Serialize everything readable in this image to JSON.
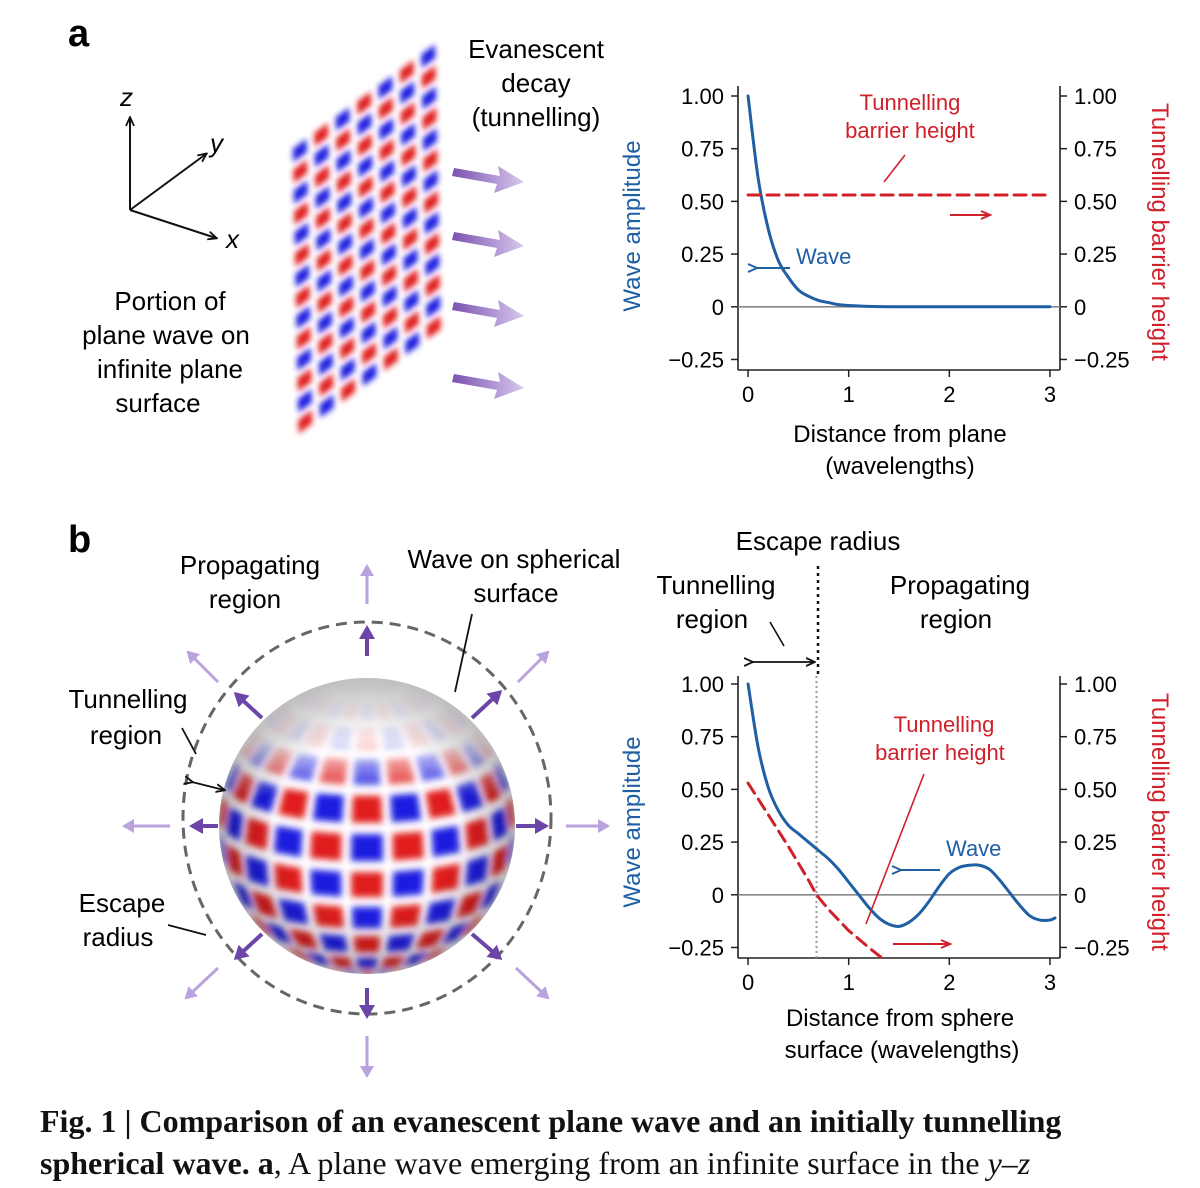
{
  "panel_a": {
    "label": "a",
    "axes": {
      "z": "z",
      "y": "y",
      "x": "x"
    },
    "plane_caption": [
      "Portion of",
      "plane wave on",
      "infinite plane",
      "surface"
    ],
    "decay_caption": [
      "Evanescent",
      "decay",
      "(tunnelling)"
    ]
  },
  "panel_b": {
    "label": "b",
    "sphere_labels": {
      "propagating": [
        "Propagating",
        "region"
      ],
      "wave_surface": [
        "Wave on spherical",
        "surface"
      ],
      "tunnelling": [
        "Tunnelling",
        "region"
      ],
      "escape": [
        "Escape",
        "radius"
      ]
    },
    "plot_header": {
      "escape_radius": "Escape radius",
      "tunnelling_region": [
        "Tunnelling",
        "region"
      ],
      "propagating_region": [
        "Propagating",
        "region"
      ]
    }
  },
  "colors": {
    "wave": "#1f5fa3",
    "barrier": "#d0202a",
    "arrow": "#8060b0",
    "dash": "#555555"
  },
  "chart_data": [
    {
      "type": "line",
      "xlabel": [
        "Distance from plane",
        "(wavelengths)"
      ],
      "ylabel": "Wave amplitude",
      "ylabel_right": "Tunnelling barrier height",
      "xlim": [
        -0.1,
        3.1
      ],
      "ylim": [
        -0.3,
        1.0
      ],
      "xticks": [
        "0",
        "1",
        "2",
        "3"
      ],
      "yticks": [
        "1.00",
        "0.75",
        "0.50",
        "0.25",
        "0",
        "−0.25"
      ],
      "annotations": {
        "wave": "Wave",
        "barrier": [
          "Tunnelling",
          "barrier height"
        ]
      },
      "series": [
        {
          "name": "Wave",
          "x": [
            0,
            0.1,
            0.2,
            0.3,
            0.4,
            0.5,
            0.6,
            0.7,
            0.8,
            0.9,
            1.0,
            1.2,
            1.5,
            2.0,
            2.5,
            3.0
          ],
          "y": [
            1.0,
            0.61,
            0.37,
            0.22,
            0.14,
            0.08,
            0.05,
            0.03,
            0.02,
            0.01,
            0.006,
            0.002,
            0,
            0,
            0,
            0
          ]
        },
        {
          "name": "Tunnelling barrier height",
          "x": [
            0,
            3.0
          ],
          "y": [
            0.53,
            0.53
          ]
        }
      ]
    },
    {
      "type": "line",
      "xlabel": [
        "Distance from sphere",
        "surface (wavelengths)"
      ],
      "ylabel": "Wave amplitude",
      "ylabel_right": "Tunnelling barrier height",
      "xlim": [
        -0.1,
        3.1
      ],
      "ylim": [
        -0.3,
        1.0
      ],
      "xticks": [
        "0",
        "1",
        "2",
        "3"
      ],
      "yticks": [
        "1.00",
        "0.75",
        "0.50",
        "0.25",
        "0",
        "−0.25"
      ],
      "escape_radius_x": 0.68,
      "annotations": {
        "wave": "Wave",
        "barrier": [
          "Tunnelling",
          "barrier height"
        ]
      },
      "series": [
        {
          "name": "Wave",
          "x": [
            0,
            0.1,
            0.2,
            0.3,
            0.4,
            0.5,
            0.6,
            0.7,
            0.8,
            0.9,
            1.0,
            1.1,
            1.2,
            1.3,
            1.4,
            1.5,
            1.6,
            1.7,
            1.8,
            1.9,
            2.0,
            2.1,
            2.2,
            2.3,
            2.4,
            2.5,
            2.6,
            2.7,
            2.8,
            2.9,
            3.0,
            3.05
          ],
          "y": [
            1.0,
            0.7,
            0.51,
            0.4,
            0.33,
            0.29,
            0.25,
            0.21,
            0.17,
            0.12,
            0.06,
            0.0,
            -0.06,
            -0.11,
            -0.14,
            -0.15,
            -0.13,
            -0.09,
            -0.03,
            0.04,
            0.1,
            0.13,
            0.14,
            0.14,
            0.12,
            0.07,
            0.01,
            -0.05,
            -0.1,
            -0.12,
            -0.12,
            -0.11
          ]
        },
        {
          "name": "Tunnelling barrier height",
          "x": [
            0,
            0.2,
            0.4,
            0.6,
            0.68,
            0.8,
            1.0,
            1.2,
            1.33
          ],
          "y": [
            0.53,
            0.38,
            0.23,
            0.07,
            0.0,
            -0.07,
            -0.17,
            -0.25,
            -0.3
          ]
        }
      ]
    }
  ],
  "caption": {
    "fig_label": "Fig. 1 | ",
    "title_1": "Comparison of an evanescent plane wave and an initially tunnelling",
    "title_2": "spherical wave.",
    "panel_ref": " a",
    "text": ", A plane wave emerging from an infinite surface in the ",
    "coord": "y–z"
  }
}
